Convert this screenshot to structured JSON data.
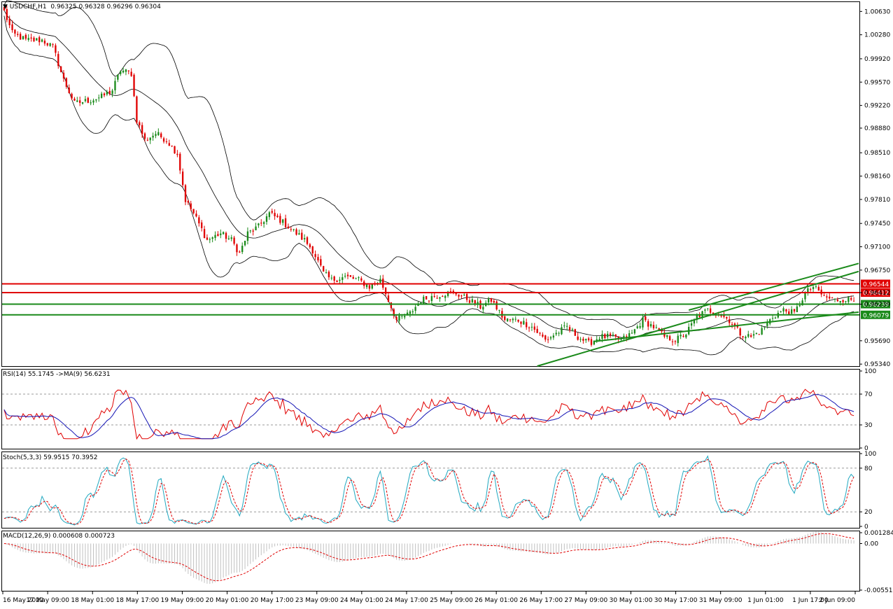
{
  "window": {
    "symbol": "USDCHF,H1",
    "ohlc": "0.96325 0.96328 0.96296 0.96304"
  },
  "colors": {
    "bull": "#1a8a1a",
    "bear": "#e00000",
    "res": "#e00000",
    "sup": "#1a8a1a",
    "channel": "#1a8a1a",
    "rsi": "#e00000",
    "ma": "#1414b4",
    "stoch_main": "#20a8c0",
    "stoch_signal": "#e00000",
    "macd_hist": "#c0c0c0",
    "macd_signal": "#e00000"
  },
  "price_axis": {
    "ticks": [
      "1.00630",
      "1.00280",
      "0.99920",
      "0.99570",
      "0.99220",
      "0.98880",
      "0.98510",
      "0.98160",
      "0.97810",
      "0.97450",
      "0.97100",
      "0.96750",
      "0.96412",
      "0.96239",
      "0.95690",
      "0.95340"
    ],
    "ylim": [
      0.9531,
      1.0077
    ]
  },
  "levels": [
    {
      "label": "0.96544",
      "value": 0.96544,
      "kind": "resistance"
    },
    {
      "label": "0.96412",
      "value": 0.96412,
      "kind": "resistance"
    },
    {
      "label": "0.96239",
      "value": 0.96239,
      "kind": "support"
    },
    {
      "label": "0.96079",
      "value": 0.96079,
      "kind": "support"
    }
  ],
  "x_labels": [
    "16 May 2022",
    "17 May 09:00",
    "18 May 01:00",
    "18 May 17:00",
    "19 May 09:00",
    "20 May 01:00",
    "20 May 17:00",
    "23 May 09:00",
    "24 May 01:00",
    "24 May 17:00",
    "25 May 09:00",
    "26 May 01:00",
    "26 May 17:00",
    "27 May 09:00",
    "30 May 01:00",
    "30 May 17:00",
    "31 May 09:00",
    "1 Jun 01:00",
    "1 Jun 17:00",
    "2 Jun 09:00"
  ],
  "rsi": {
    "label": "RSI(14) 55.1745  ->MA(9) 56.6231",
    "ticks": [
      "100",
      "70",
      "30",
      "0"
    ],
    "levels": [
      70,
      30
    ]
  },
  "stoch": {
    "label": "Stoch(5,3,3) 59.9515 70.3952",
    "ticks": [
      "100",
      "80",
      "20",
      "0"
    ],
    "levels": [
      80,
      20
    ]
  },
  "macd": {
    "label": "MACD(12,26,9) 0.000608 0.000723",
    "ticks": [
      "0.001284",
      "0.00",
      "-0.005519"
    ]
  },
  "chart_data": {
    "type": "candlestick",
    "title": "USDCHF,H1",
    "series": [
      {
        "name": "USDCHF,H1",
        "close_path": [
          [
            0,
            1.0063
          ],
          [
            3,
            1.003
          ],
          [
            8,
            1.002
          ],
          [
            14,
            1.002
          ],
          [
            18,
            1.001
          ],
          [
            22,
            0.996
          ],
          [
            26,
            0.9925
          ],
          [
            32,
            0.993
          ],
          [
            36,
            0.9935
          ],
          [
            40,
            0.9945
          ],
          [
            43,
            0.9975
          ],
          [
            47,
            0.997
          ],
          [
            49,
            0.99
          ],
          [
            52,
            0.987
          ],
          [
            56,
            0.988
          ],
          [
            60,
            0.987
          ],
          [
            64,
            0.985
          ],
          [
            67,
            0.978
          ],
          [
            70,
            0.976
          ],
          [
            75,
            0.972
          ],
          [
            80,
            0.973
          ],
          [
            84,
            0.972
          ],
          [
            87,
            0.97
          ],
          [
            90,
            0.973
          ],
          [
            94,
            0.974
          ],
          [
            98,
            0.976
          ],
          [
            102,
            0.975
          ],
          [
            105,
            0.974
          ],
          [
            108,
            0.973
          ],
          [
            111,
            0.972
          ],
          [
            114,
            0.9705
          ],
          [
            118,
            0.967
          ],
          [
            121,
            0.966
          ],
          [
            126,
            0.9665
          ],
          [
            131,
            0.966
          ],
          [
            135,
            0.965
          ],
          [
            139,
            0.966
          ],
          [
            142,
            0.963
          ],
          [
            145,
            0.96
          ],
          [
            150,
            0.961
          ],
          [
            154,
            0.963
          ],
          [
            158,
            0.9635
          ],
          [
            163,
            0.964
          ],
          [
            167,
            0.964
          ],
          [
            172,
            0.963
          ],
          [
            176,
            0.962
          ],
          [
            180,
            0.963
          ],
          [
            185,
            0.96
          ],
          [
            190,
            0.96
          ],
          [
            195,
            0.959
          ],
          [
            200,
            0.957
          ],
          [
            204,
            0.958
          ],
          [
            208,
            0.959
          ],
          [
            212,
            0.9575
          ],
          [
            216,
            0.9565
          ],
          [
            220,
            0.9575
          ],
          [
            224,
            0.9575
          ],
          [
            228,
            0.957
          ],
          [
            232,
            0.958
          ],
          [
            236,
            0.96
          ],
          [
            240,
            0.959
          ],
          [
            244,
            0.9575
          ],
          [
            248,
            0.957
          ],
          [
            252,
            0.958
          ],
          [
            256,
            0.9605
          ],
          [
            260,
            0.9615
          ],
          [
            264,
            0.961
          ],
          [
            268,
            0.96
          ],
          [
            272,
            0.958
          ],
          [
            276,
            0.9575
          ],
          [
            280,
            0.9585
          ],
          [
            284,
            0.9605
          ],
          [
            288,
            0.9615
          ],
          [
            292,
            0.961
          ],
          [
            296,
            0.964
          ],
          [
            299,
            0.965
          ],
          [
            303,
            0.9635
          ],
          [
            307,
            0.963
          ],
          [
            311,
            0.9632
          ],
          [
            314,
            0.963
          ]
        ]
      }
    ],
    "indicators": [
      "Bollinger Bands",
      "RSI(14)",
      "MA(9)",
      "Stoch(5,3,3)",
      "MACD(12,26,9)"
    ],
    "grid": false
  }
}
